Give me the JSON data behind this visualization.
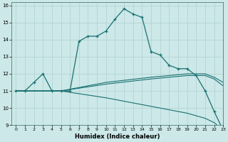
{
  "xlabel": "Humidex (Indice chaleur)",
  "xlim": [
    -0.5,
    23
  ],
  "ylim": [
    9,
    16.2
  ],
  "xticks": [
    0,
    1,
    2,
    3,
    4,
    5,
    6,
    7,
    8,
    9,
    10,
    11,
    12,
    13,
    14,
    15,
    16,
    17,
    18,
    19,
    20,
    21,
    22,
    23
  ],
  "yticks": [
    9,
    10,
    11,
    12,
    13,
    14,
    15,
    16
  ],
  "bg_color": "#cce8e8",
  "grid_color": "#b0d0d0",
  "line_color": "#1a7070",
  "line1_x": [
    0,
    1,
    2,
    3,
    4,
    5,
    6,
    7,
    8,
    9,
    10,
    11,
    12,
    13,
    14,
    15,
    16,
    17,
    18,
    19,
    20,
    21,
    22,
    23
  ],
  "line1_y": [
    11.0,
    11.0,
    11.5,
    12.0,
    11.0,
    11.0,
    11.0,
    13.9,
    14.2,
    14.2,
    14.5,
    15.2,
    15.8,
    15.5,
    15.3,
    13.3,
    13.1,
    12.5,
    12.3,
    12.3,
    11.9,
    11.0,
    9.8,
    8.7
  ],
  "line2_x": [
    0,
    5,
    10,
    15,
    19,
    21,
    22,
    23
  ],
  "line2_y": [
    11.0,
    11.0,
    11.5,
    11.8,
    12.0,
    12.0,
    11.8,
    11.5
  ],
  "line3_x": [
    0,
    5,
    10,
    15,
    19,
    21,
    22,
    23
  ],
  "line3_y": [
    11.0,
    11.0,
    11.4,
    11.7,
    11.9,
    11.9,
    11.7,
    11.3
  ],
  "line4_x": [
    0,
    5,
    10,
    15,
    19,
    21,
    22,
    23
  ],
  "line4_y": [
    11.0,
    11.0,
    10.6,
    10.1,
    9.7,
    9.4,
    9.15,
    8.7
  ]
}
